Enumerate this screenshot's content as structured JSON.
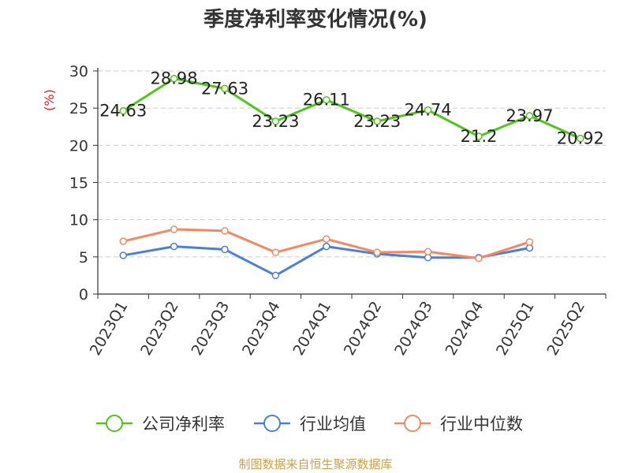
{
  "chart_data": {
    "type": "line",
    "title": "季度净利率变化情况(%)",
    "ylabel": "(%)",
    "ylim": [
      0,
      30
    ],
    "yticks": [
      0,
      5,
      10,
      15,
      20,
      25,
      30
    ],
    "grid": true,
    "legend_position": "bottom",
    "categories": [
      "2023Q1",
      "2023Q2",
      "2023Q3",
      "2023Q4",
      "2024Q1",
      "2024Q2",
      "2024Q3",
      "2024Q4",
      "2025Q1",
      "2025Q2"
    ],
    "series": [
      {
        "name": "公司净利率",
        "color": "#52c41a",
        "values": [
          24.63,
          28.98,
          27.63,
          23.23,
          26.11,
          23.23,
          24.74,
          21.2,
          23.97,
          20.92
        ],
        "labels": [
          "24.63",
          "28.98",
          "27.63",
          "23.23",
          "26.11",
          "23.23",
          "24.74",
          "21.2",
          "23.97",
          "20.92"
        ]
      },
      {
        "name": "行业均值",
        "color": "#4a7fdc",
        "values": [
          5.2,
          6.4,
          6.0,
          2.5,
          6.4,
          5.4,
          4.9,
          4.9,
          6.2,
          null
        ]
      },
      {
        "name": "行业中位数",
        "color": "#f4895f",
        "values": [
          7.1,
          8.7,
          8.5,
          5.6,
          7.4,
          5.6,
          5.7,
          4.8,
          7.0,
          null
        ]
      }
    ]
  },
  "source": "制图数据来自恒生聚源数据库",
  "colors": {
    "ylabel": "#e02020",
    "source": "#c8a24a",
    "axis": "#333333",
    "grid": "#cccccc"
  }
}
